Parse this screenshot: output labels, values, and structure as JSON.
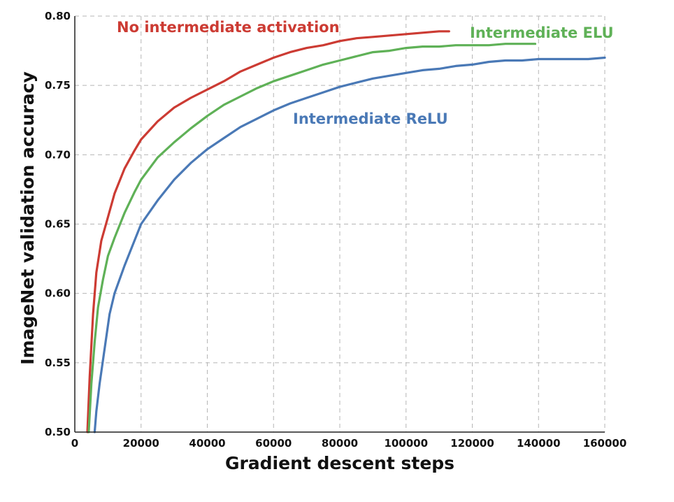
{
  "chart_data": {
    "type": "line",
    "title": "",
    "xlabel": "Gradient descent steps",
    "ylabel": "ImageNet validation accuracy",
    "xlim": [
      0,
      160000
    ],
    "ylim": [
      0.5,
      0.8
    ],
    "grid": true,
    "legend": "none",
    "x_ticks": [
      "0",
      "20000",
      "40000",
      "60000",
      "80000",
      "100000",
      "120000",
      "140000",
      "160000"
    ],
    "y_ticks": [
      "0.50",
      "0.55",
      "0.60",
      "0.65",
      "0.70",
      "0.75",
      "0.80"
    ],
    "series": [
      {
        "name": "No intermediate activation",
        "color": "#cc3b33",
        "x": [
          3800,
          4500,
          5500,
          6500,
          8000,
          10000,
          12000,
          15000,
          18000,
          20000,
          25000,
          30000,
          35000,
          40000,
          45000,
          50000,
          55000,
          60000,
          65000,
          70000,
          75000,
          80000,
          85000,
          90000,
          95000,
          100000,
          105000,
          110000,
          113000
        ],
        "y": [
          0.5,
          0.54,
          0.585,
          0.615,
          0.638,
          0.655,
          0.672,
          0.69,
          0.703,
          0.711,
          0.724,
          0.734,
          0.741,
          0.747,
          0.753,
          0.76,
          0.765,
          0.77,
          0.774,
          0.777,
          0.779,
          0.782,
          0.784,
          0.785,
          0.786,
          0.787,
          0.788,
          0.789,
          0.789
        ]
      },
      {
        "name": "Intermediate ELU",
        "color": "#5fb157",
        "x": [
          4200,
          5000,
          6000,
          7000,
          8500,
          10000,
          12000,
          15000,
          18000,
          20000,
          25000,
          30000,
          35000,
          40000,
          45000,
          50000,
          55000,
          60000,
          65000,
          70000,
          75000,
          80000,
          85000,
          90000,
          95000,
          100000,
          105000,
          110000,
          115000,
          120000,
          125000,
          130000,
          135000,
          139000
        ],
        "y": [
          0.5,
          0.535,
          0.565,
          0.59,
          0.61,
          0.627,
          0.64,
          0.658,
          0.673,
          0.682,
          0.698,
          0.709,
          0.719,
          0.728,
          0.736,
          0.742,
          0.748,
          0.753,
          0.757,
          0.761,
          0.765,
          0.768,
          0.771,
          0.774,
          0.775,
          0.777,
          0.778,
          0.778,
          0.779,
          0.779,
          0.779,
          0.78,
          0.78,
          0.78
        ]
      },
      {
        "name": "Intermediate ReLU",
        "color": "#4a79b6",
        "x": [
          6000,
          6500,
          7500,
          9000,
          10500,
          12000,
          15000,
          18000,
          20000,
          25000,
          30000,
          35000,
          40000,
          45000,
          50000,
          55000,
          60000,
          65000,
          70000,
          75000,
          80000,
          85000,
          90000,
          95000,
          100000,
          105000,
          110000,
          115000,
          120000,
          125000,
          130000,
          135000,
          140000,
          145000,
          150000,
          155000,
          160000
        ],
        "y": [
          0.5,
          0.515,
          0.535,
          0.56,
          0.585,
          0.6,
          0.62,
          0.638,
          0.65,
          0.667,
          0.682,
          0.694,
          0.704,
          0.712,
          0.72,
          0.726,
          0.732,
          0.737,
          0.741,
          0.745,
          0.749,
          0.752,
          0.755,
          0.757,
          0.759,
          0.761,
          0.762,
          0.764,
          0.765,
          0.767,
          0.768,
          0.768,
          0.769,
          0.769,
          0.769,
          0.769,
          0.77
        ]
      }
    ]
  }
}
